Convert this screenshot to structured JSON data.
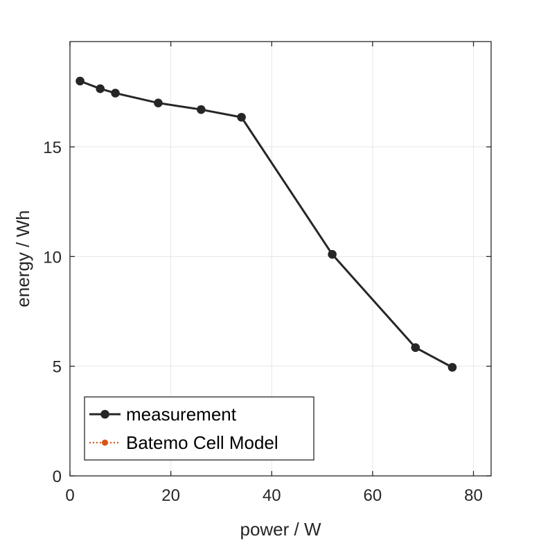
{
  "chart_data": {
    "type": "line",
    "xlabel": "power / W",
    "ylabel": "energy / Wh",
    "xlim": [
      0,
      83.5
    ],
    "ylim": [
      0,
      19.8
    ],
    "xticks": [
      0,
      20,
      40,
      60,
      80
    ],
    "yticks": [
      0,
      5,
      10,
      15
    ],
    "grid": true,
    "legend_position": "bottom-left",
    "series": [
      {
        "name": "measurement",
        "color": "#262626",
        "marker": "circle",
        "line_style": "solid",
        "x": [
          2.0,
          6.0,
          9.0,
          17.5,
          26.0,
          34.0,
          52.0,
          68.5,
          75.8
        ],
        "y": [
          18.0,
          17.65,
          17.45,
          17.0,
          16.7,
          16.35,
          10.1,
          5.85,
          4.95
        ]
      },
      {
        "name": "Batemo Cell Model",
        "color": "#d95319",
        "marker": "circle",
        "line_style": "dotted",
        "x": [],
        "y": []
      }
    ]
  }
}
